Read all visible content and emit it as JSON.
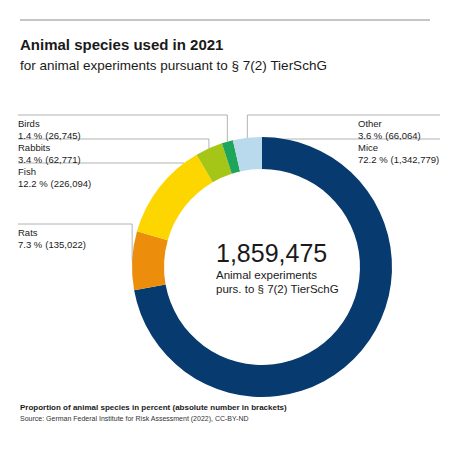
{
  "chart_data": {
    "type": "donut",
    "title": "Animal species used in 2021",
    "subtitle": "for animal experiments pursuant to § 7(2) TierSchG",
    "categories": [
      "Mice",
      "Rats",
      "Fish",
      "Rabbits",
      "Birds",
      "Other"
    ],
    "values": [
      72.2,
      7.3,
      12.2,
      3.4,
      1.4,
      3.6
    ],
    "value_labels": [
      "72.2 %",
      "7.3 %",
      "12.2 %",
      "3.4 %",
      "1.4 %",
      "3.6 %"
    ],
    "counts": [
      1342779,
      135022,
      226094,
      62771,
      26745,
      66064
    ],
    "count_labels": [
      "(1,342,779)",
      "(135,022)",
      "(226,094)",
      "(62,771)",
      "(26,745)",
      "(66,064)"
    ],
    "colors": [
      "#073a6e",
      "#ec8e0c",
      "#fdd600",
      "#a6c617",
      "#1fa55a",
      "#b9d9ec"
    ],
    "data_labels": true,
    "center_text": [
      "1,859,475",
      "Animal experiments",
      "purs. to § 7(2) TierSchG"
    ],
    "footnote": "Proportion of animal species in percent (absolute number in brackets)",
    "source": "Source: German Federal Institute for Risk Assessment (2022), CC-BY-ND"
  }
}
